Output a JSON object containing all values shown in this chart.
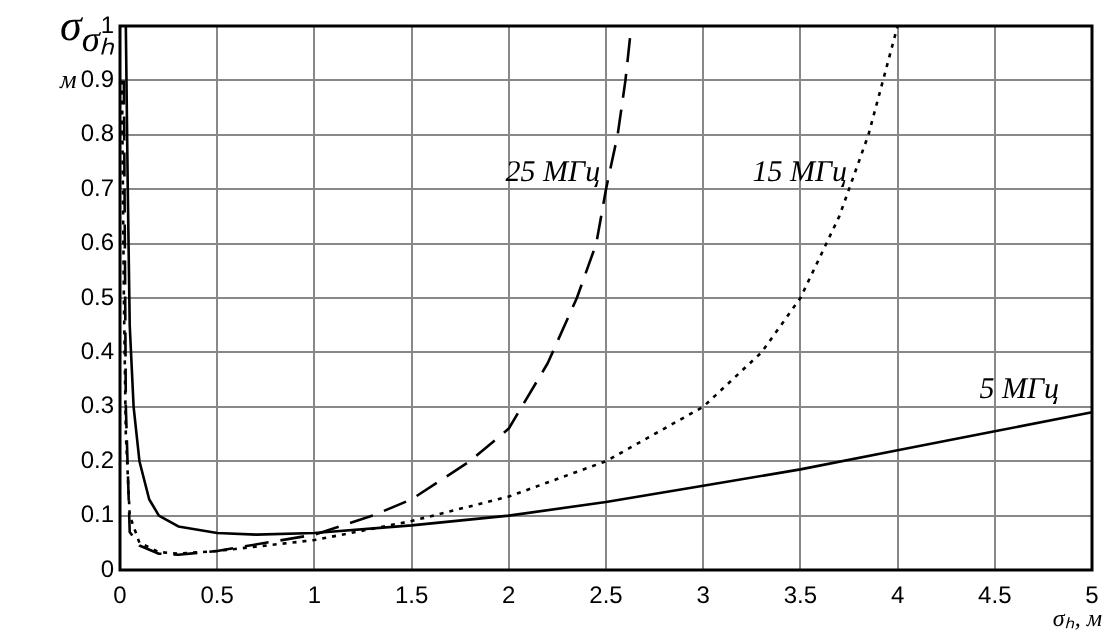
{
  "chart_data": {
    "type": "line",
    "xlabel": "σₕ, м",
    "ylabel": "σ$_{σₕ}$ м",
    "xlim": [
      0,
      5
    ],
    "ylim": [
      0,
      1
    ],
    "xticks": [
      0,
      0.5,
      1,
      1.5,
      2,
      2.5,
      3,
      3.5,
      4,
      4.5,
      5
    ],
    "yticks": [
      0,
      0.1,
      0.2,
      0.3,
      0.4,
      0.5,
      0.6,
      0.7,
      0.8,
      0.9,
      1
    ],
    "grid": true,
    "legend": false,
    "marker": "none",
    "series": [
      {
        "name": "25 МГц",
        "color": "#000000",
        "line_style": "dashed",
        "x": [
          0.02,
          0.03,
          0.05,
          0.1,
          0.2,
          0.3,
          0.5,
          1,
          1.3,
          1.5,
          1.8,
          2,
          2.2,
          2.35,
          2.45,
          2.5,
          2.56,
          2.6,
          2.63
        ],
        "values": [
          0.9,
          0.3,
          0.07,
          0.045,
          0.03,
          0.028,
          0.035,
          0.065,
          0.1,
          0.13,
          0.2,
          0.26,
          0.38,
          0.5,
          0.6,
          0.7,
          0.8,
          0.9,
          1
        ]
      },
      {
        "name": "15 МГц",
        "color": "#000000",
        "line_style": "dotted",
        "x": [
          0.01,
          0.02,
          0.03,
          0.05,
          0.1,
          0.2,
          0.3,
          0.5,
          1,
          1.5,
          2,
          2.5,
          3,
          3.3,
          3.5,
          3.7,
          3.85,
          4
        ],
        "values": [
          0.9,
          0.5,
          0.25,
          0.1,
          0.05,
          0.033,
          0.03,
          0.035,
          0.055,
          0.09,
          0.135,
          0.2,
          0.3,
          0.4,
          0.5,
          0.65,
          0.8,
          1
        ]
      },
      {
        "name": "5 МГц",
        "color": "#000000",
        "line_style": "solid",
        "x": [
          0.03,
          0.04,
          0.05,
          0.07,
          0.1,
          0.15,
          0.2,
          0.3,
          0.5,
          0.7,
          1,
          1.5,
          2,
          2.5,
          3,
          3.5,
          4,
          4.5,
          5
        ],
        "values": [
          1,
          0.7,
          0.45,
          0.3,
          0.2,
          0.13,
          0.1,
          0.08,
          0.068,
          0.065,
          0.068,
          0.082,
          0.1,
          0.125,
          0.155,
          0.185,
          0.22,
          0.255,
          0.29
        ]
      }
    ]
  }
}
